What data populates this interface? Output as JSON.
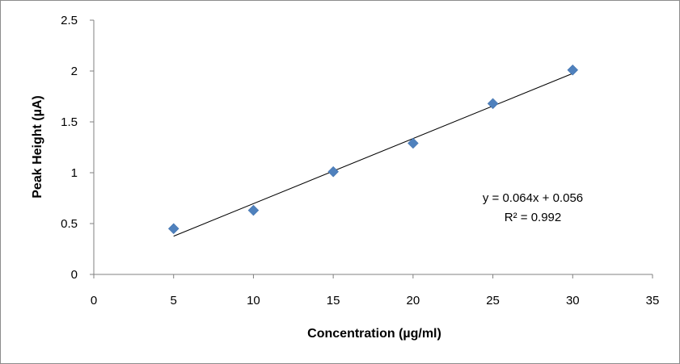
{
  "chart_data": {
    "type": "scatter",
    "title": "",
    "xlabel": "Concentration (µg/ml)",
    "ylabel": "Peak Height (µA)",
    "xlim": [
      0,
      35
    ],
    "ylim": [
      0,
      2.5
    ],
    "x_ticks": [
      "0",
      "5",
      "10",
      "15",
      "20",
      "25",
      "30",
      "35"
    ],
    "y_ticks": [
      "0",
      "0.5",
      "1",
      "1.5",
      "2",
      "2.5"
    ],
    "grid": false,
    "legend": "none",
    "series": [
      {
        "color": "#4f81bd",
        "marker": "diamond",
        "points": [
          {
            "x": 5,
            "y": 0.45
          },
          {
            "x": 10,
            "y": 0.63
          },
          {
            "x": 15,
            "y": 1.01
          },
          {
            "x": 20,
            "y": 1.29
          },
          {
            "x": 25,
            "y": 1.68
          },
          {
            "x": 30,
            "y": 2.01
          }
        ]
      }
    ],
    "trendline": {
      "type": "linear",
      "slope": 0.064,
      "intercept": 0.056,
      "x_range": [
        5,
        30
      ],
      "color": "#000000",
      "equation": "y = 0.064x + 0.056",
      "r_squared_label": "R² = 0.992"
    }
  }
}
